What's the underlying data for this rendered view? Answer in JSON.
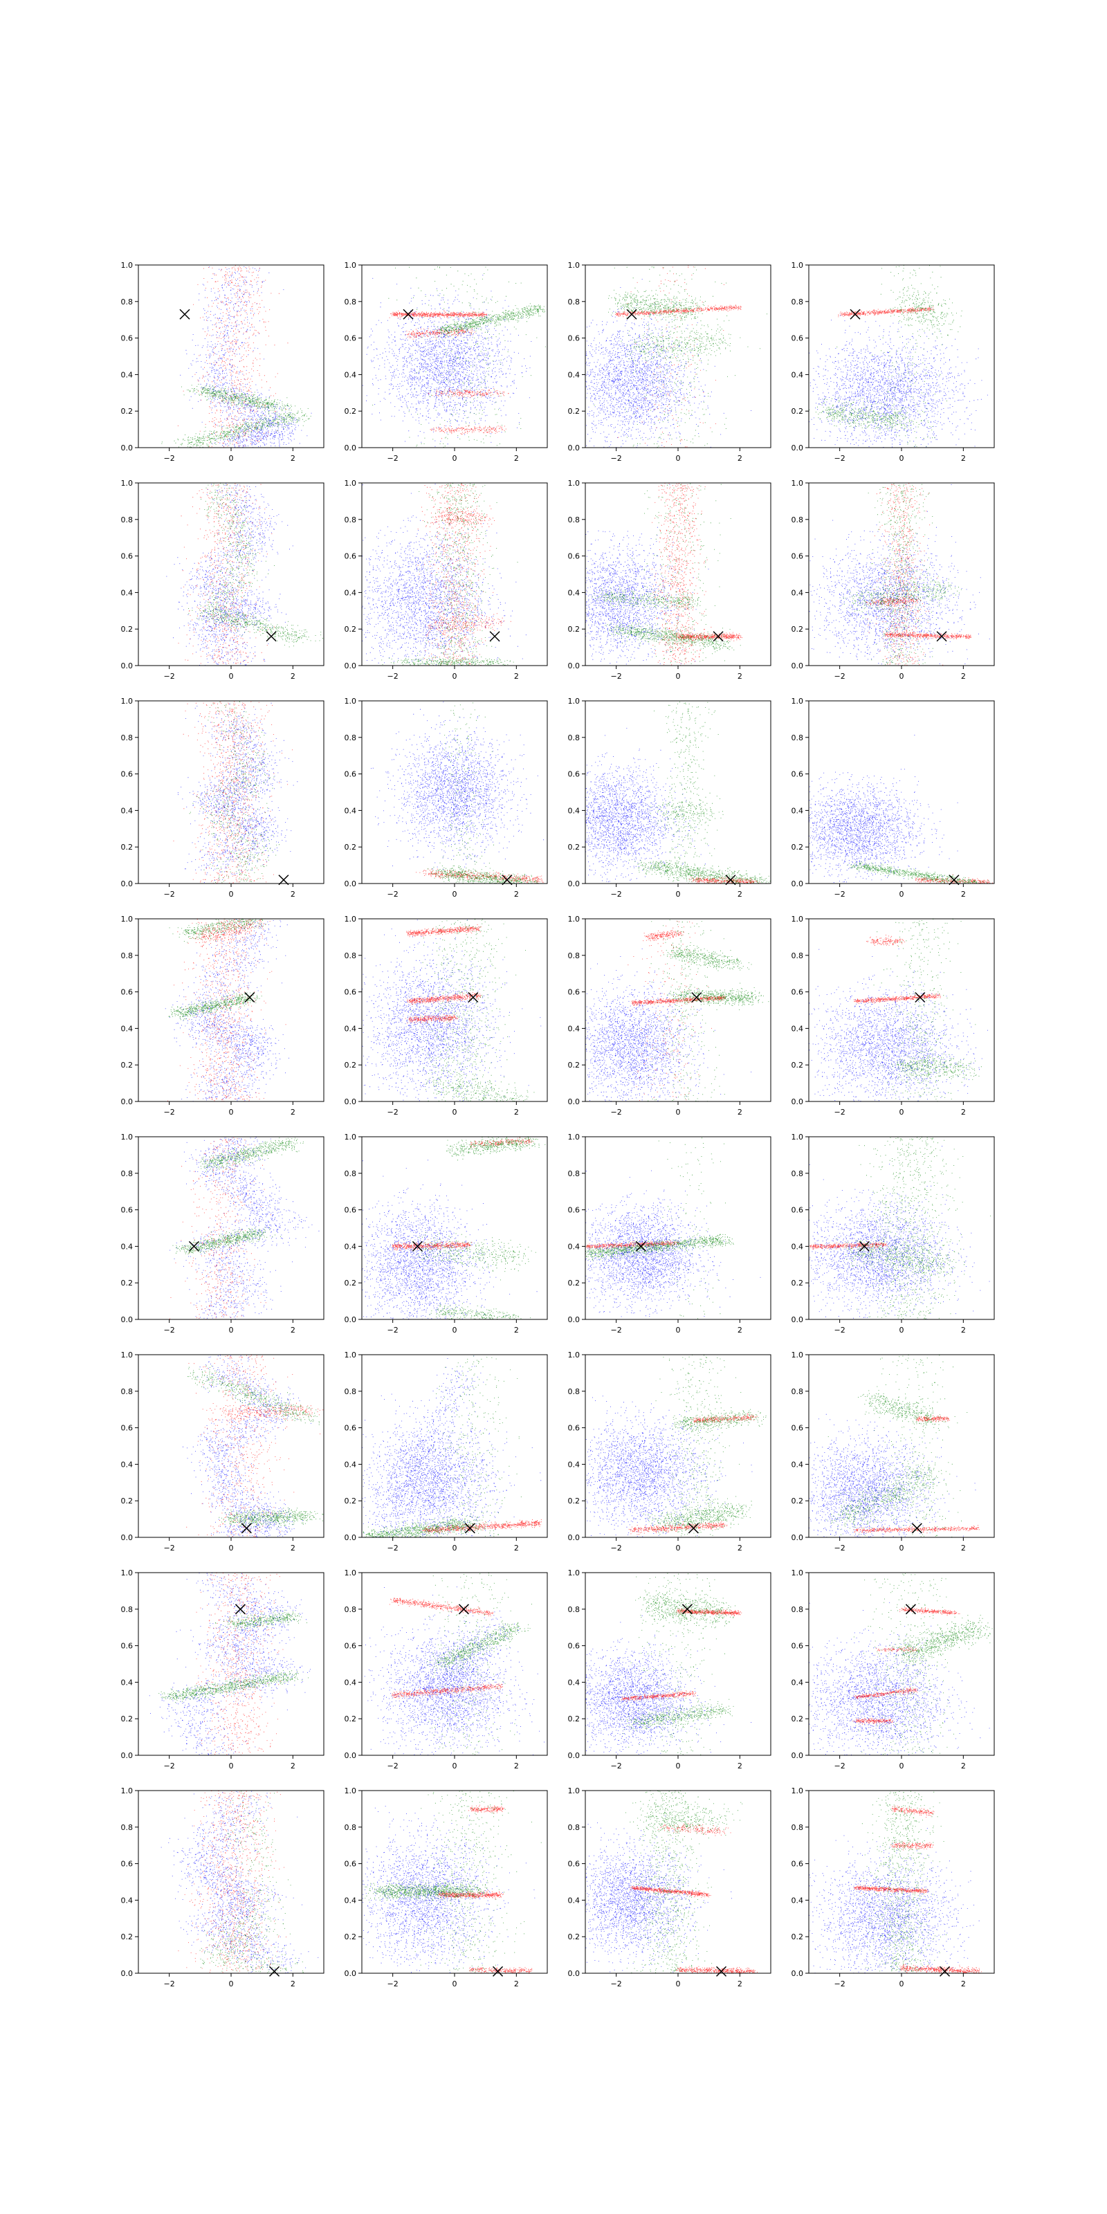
{
  "figure": {
    "rows": 8,
    "cols": 4,
    "background": "#ffffff"
  },
  "colors": {
    "blue": "#0000ff",
    "green": "#008000",
    "red": "#ff0000",
    "marker": "#000000",
    "axes": "#000000"
  },
  "axes_common": {
    "xlim": [
      -3,
      3
    ],
    "ylim": [
      0,
      1
    ],
    "xticks": [
      -2,
      0,
      2
    ],
    "xtick_labels": [
      "−2",
      "0",
      "2"
    ],
    "yticks": [
      0.0,
      0.2,
      0.4,
      0.6,
      0.8,
      1.0
    ],
    "ytick_labels": [
      "0.0",
      "0.2",
      "0.4",
      "0.6",
      "0.8",
      "1.0"
    ]
  },
  "rows": [
    {
      "marker": [
        -1.5,
        0.73
      ]
    },
    {
      "marker": [
        1.3,
        0.16
      ]
    },
    {
      "marker": [
        1.7,
        0.02
      ]
    },
    {
      "marker": [
        0.6,
        0.57
      ]
    },
    {
      "marker": [
        -1.2,
        0.4
      ]
    },
    {
      "marker": [
        0.5,
        0.05
      ]
    },
    {
      "marker": [
        0.3,
        0.8
      ]
    },
    {
      "marker": [
        1.4,
        0.01
      ]
    }
  ],
  "chart_data": [
    {
      "type": "scatter",
      "row": 1,
      "col": 1,
      "xlim": [
        -3,
        3
      ],
      "ylim": [
        0,
        1
      ],
      "marker_x": [
        -1.5,
        0.73
      ],
      "series": [
        {
          "color": "blue",
          "pattern": "zigzag",
          "zigzag": [
            [
              0.3,
              1.0
            ],
            [
              -0.5,
              0.3
            ],
            [
              1.5,
              0.12
            ],
            [
              0.0,
              0.0
            ]
          ]
        },
        {
          "color": "green",
          "pattern": "bands",
          "bands": [
            {
              "x": [
                -1.0,
                1.5
              ],
              "y": [
                0.32,
                0.22
              ]
            },
            {
              "x": [
                -1.5,
                2.2
              ],
              "y": [
                0.02,
                0.18
              ]
            }
          ]
        },
        {
          "color": "red",
          "pattern": "vertical",
          "center": 0.1,
          "ylim": [
            0.0,
            1.0
          ]
        }
      ]
    },
    {
      "type": "scatter",
      "row": 1,
      "col": 2,
      "xlim": [
        -3,
        3
      ],
      "ylim": [
        0,
        1
      ],
      "marker_x": [
        -1.5,
        0.73
      ],
      "series": [
        {
          "color": "blue",
          "pattern": "cloud",
          "center": [
            -0.3,
            0.45
          ]
        },
        {
          "color": "green",
          "pattern": "bands",
          "bands": [
            {
              "x": [
                -0.5,
                2.8
              ],
              "y": [
                0.64,
                0.76
              ]
            }
          ]
        },
        {
          "color": "red",
          "pattern": "bands",
          "bands": [
            {
              "x": [
                -2.0,
                1.0
              ],
              "y": [
                0.73,
                0.73
              ]
            },
            {
              "x": [
                -1.5,
                0.5
              ],
              "y": [
                0.62,
                0.64
              ]
            },
            {
              "x": [
                -0.5,
                1.5
              ],
              "y": [
                0.3,
                0.3
              ]
            },
            {
              "x": [
                -0.5,
                1.5
              ],
              "y": [
                0.1,
                0.1
              ]
            }
          ]
        }
      ]
    },
    {
      "type": "scatter",
      "row": 1,
      "col": 3,
      "xlim": [
        -3,
        3
      ],
      "ylim": [
        0,
        1
      ],
      "marker_x": [
        -1.5,
        0.73
      ],
      "series": [
        {
          "color": "blue",
          "pattern": "cloud",
          "center": [
            -1.5,
            0.35
          ]
        },
        {
          "color": "green",
          "pattern": "bands",
          "bands": [
            {
              "x": [
                -2.0,
                0.5
              ],
              "y": [
                0.8,
                0.75
              ]
            },
            {
              "x": [
                -1.5,
                1.5
              ],
              "y": [
                0.55,
                0.58
              ]
            }
          ]
        },
        {
          "color": "red",
          "pattern": "bands",
          "bands": [
            {
              "x": [
                -2.0,
                2.0
              ],
              "y": [
                0.73,
                0.77
              ]
            }
          ]
        }
      ]
    },
    {
      "type": "scatter",
      "row": 1,
      "col": 4,
      "xlim": [
        -3,
        3
      ],
      "ylim": [
        0,
        1
      ],
      "marker_x": [
        -1.5,
        0.73
      ],
      "series": [
        {
          "color": "blue",
          "pattern": "cloud",
          "center": [
            -0.5,
            0.3
          ]
        },
        {
          "color": "green",
          "pattern": "bands",
          "bands": [
            {
              "x": [
                -2.5,
                0.0
              ],
              "y": [
                0.2,
                0.15
              ]
            },
            {
              "x": [
                0.0,
                1.5
              ],
              "y": [
                0.8,
                0.7
              ]
            }
          ]
        },
        {
          "color": "red",
          "pattern": "bands",
          "bands": [
            {
              "x": [
                -2.0,
                1.0
              ],
              "y": [
                0.73,
                0.76
              ]
            }
          ]
        }
      ]
    }
  ],
  "panel_notes": "All 32 panels share the same axes; remaining panels follow the same three-color scatter pattern."
}
